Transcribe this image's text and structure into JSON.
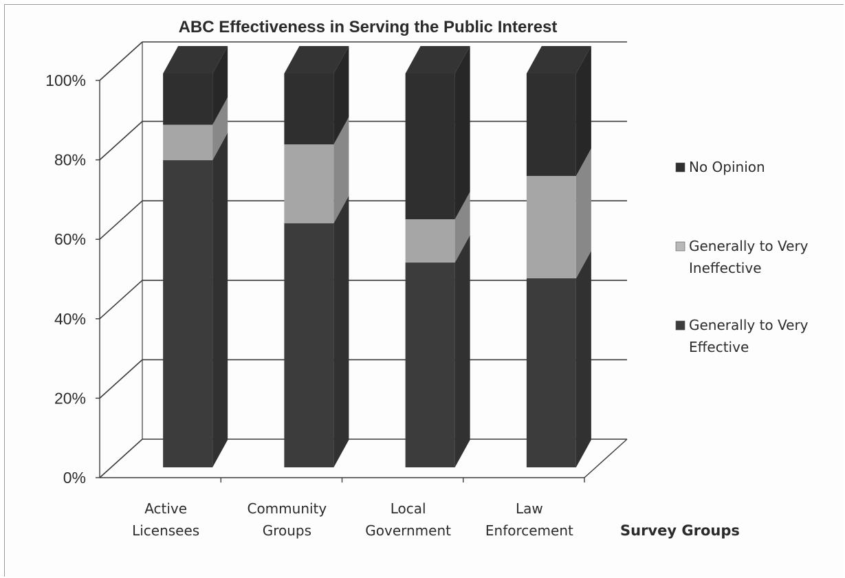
{
  "chart_data": {
    "type": "bar",
    "stacked": true,
    "three_d": true,
    "title": "ABC Effectiveness in Serving the Public Interest",
    "xlabel": "Survey Groups",
    "ylabel": "",
    "categories": [
      [
        "Active",
        "Licensees"
      ],
      [
        "Community",
        "Groups"
      ],
      [
        "Local",
        "Government"
      ],
      [
        "Law",
        "Enforcement"
      ]
    ],
    "y_ticks": [
      "0%",
      "20%",
      "40%",
      "60%",
      "80%",
      "100%"
    ],
    "ylim": [
      0,
      100
    ],
    "grid": true,
    "legend_position": "right",
    "series": [
      {
        "name": [
          "Generally to Very",
          "Effective"
        ],
        "values": [
          78,
          62,
          52,
          48
        ],
        "color": "#3c3c3c"
      },
      {
        "name": [
          "Generally to Very",
          "Ineffective"
        ],
        "values": [
          9,
          20,
          11,
          26
        ],
        "color": "#a6a6a6"
      },
      {
        "name": [
          "No Opinion"
        ],
        "values": [
          13,
          18,
          37,
          26
        ],
        "color": "#2f2f2f"
      }
    ],
    "legend_order": [
      2,
      1,
      0
    ]
  }
}
